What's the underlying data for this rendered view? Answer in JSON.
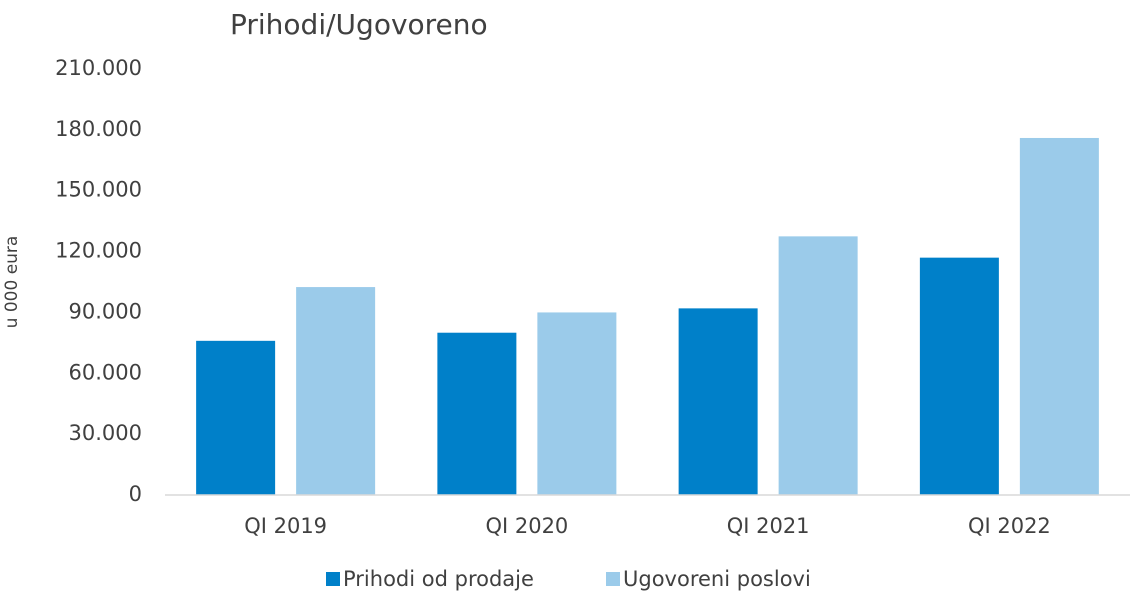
{
  "chart_data": {
    "type": "bar",
    "title": "Prihodi/Ugovoreno",
    "y_label": "u 000 eura",
    "categories": [
      "QI 2019",
      "QI 2020",
      "QI 2021",
      "QI 2022"
    ],
    "series": [
      {
        "name": "Prihodi od prodaje",
        "color": "#0080c9",
        "values": [
          76000,
          80000,
          92000,
          117000
        ]
      },
      {
        "name": "Ugovoreni poslovi",
        "color": "#9bcbea",
        "values": [
          102500,
          90000,
          127500,
          176000
        ]
      }
    ],
    "ylim": [
      0,
      210000
    ],
    "yticks": [
      0,
      {
        "value": 30000,
        "label": "30.000"
      },
      {
        "value": 60000,
        "label": "60.000"
      },
      {
        "value": 90000,
        "label": "90.000"
      },
      {
        "value": 120000,
        "label": "120.000"
      },
      {
        "value": 150000,
        "label": "150.000"
      },
      {
        "value": 180000,
        "label": "180.000"
      },
      {
        "value": 210000,
        "label": "210.000"
      }
    ],
    "grid": false,
    "legend": "bottom"
  }
}
